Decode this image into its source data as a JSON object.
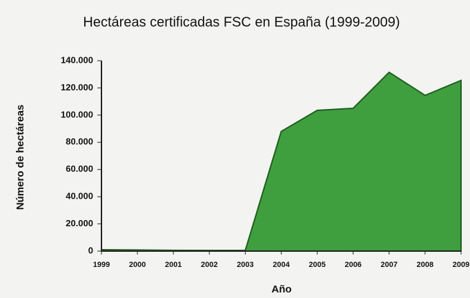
{
  "chart_data": {
    "type": "area",
    "title": "Hectáreas certificadas FSC en España (1999-2009)",
    "x_label": "Año",
    "y_label": "Número de hectáreas",
    "x": [
      1999,
      2000,
      2001,
      2002,
      2003,
      2004,
      2005,
      2006,
      2007,
      2008,
      2009
    ],
    "values": [
      1000,
      800,
      600,
      500,
      500,
      88000,
      103500,
      105000,
      131500,
      114500,
      125500
    ],
    "color": "#3f9f3f",
    "xlim": [
      1999,
      2009
    ],
    "xticks": [
      1999,
      2000,
      2001,
      2002,
      2003,
      2004,
      2005,
      2006,
      2007,
      2008,
      2009
    ],
    "ylim": [
      0,
      140000
    ],
    "yticks": [
      0,
      {
        "value": 20000,
        "label": "20.000"
      },
      {
        "value": 40000,
        "label": "40.000"
      },
      {
        "value": 60000,
        "label": "60.000"
      },
      {
        "value": 80000,
        "label": "80.000"
      },
      {
        "value": 100000,
        "label": "100.000"
      },
      {
        "value": 120000,
        "label": "120.000"
      },
      {
        "value": 140000,
        "label": "140.000"
      }
    ]
  }
}
